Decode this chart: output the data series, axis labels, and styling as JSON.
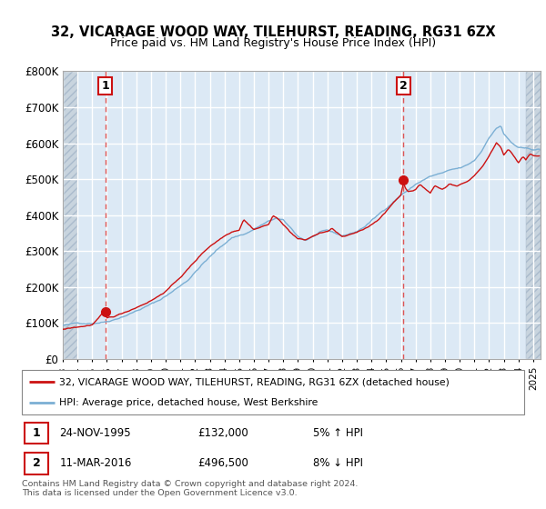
{
  "title": "32, VICARAGE WOOD WAY, TILEHURST, READING, RG31 6ZX",
  "subtitle": "Price paid vs. HM Land Registry's House Price Index (HPI)",
  "ylim": [
    0,
    800000
  ],
  "yticks": [
    0,
    100000,
    200000,
    300000,
    400000,
    500000,
    600000,
    700000,
    800000
  ],
  "ytick_labels": [
    "£0",
    "£100K",
    "£200K",
    "£300K",
    "£400K",
    "£500K",
    "£600K",
    "£700K",
    "£800K"
  ],
  "plot_bg_color": "#dce9f5",
  "hatch_color": "#c0c8d0",
  "grid_color": "#ffffff",
  "hpi_color": "#7bafd4",
  "price_color": "#cc1111",
  "vline_color": "#dd5555",
  "purchase1_date": 1995.9,
  "purchase1_price": 132000,
  "purchase2_date": 2016.18,
  "purchase2_price": 496500,
  "legend_line1": "32, VICARAGE WOOD WAY, TILEHURST, READING, RG31 6ZX (detached house)",
  "legend_line2": "HPI: Average price, detached house, West Berkshire",
  "table_row1": [
    "1",
    "24-NOV-1995",
    "£132,000",
    "5% ↑ HPI"
  ],
  "table_row2": [
    "2",
    "11-MAR-2016",
    "£496,500",
    "8% ↓ HPI"
  ],
  "footnote": "Contains HM Land Registry data © Crown copyright and database right 2024.\nThis data is licensed under the Open Government Licence v3.0.",
  "xmin": 1993.0,
  "xmax": 2025.5,
  "hatch_left_end": 1994.0,
  "hatch_right_start": 2024.5
}
